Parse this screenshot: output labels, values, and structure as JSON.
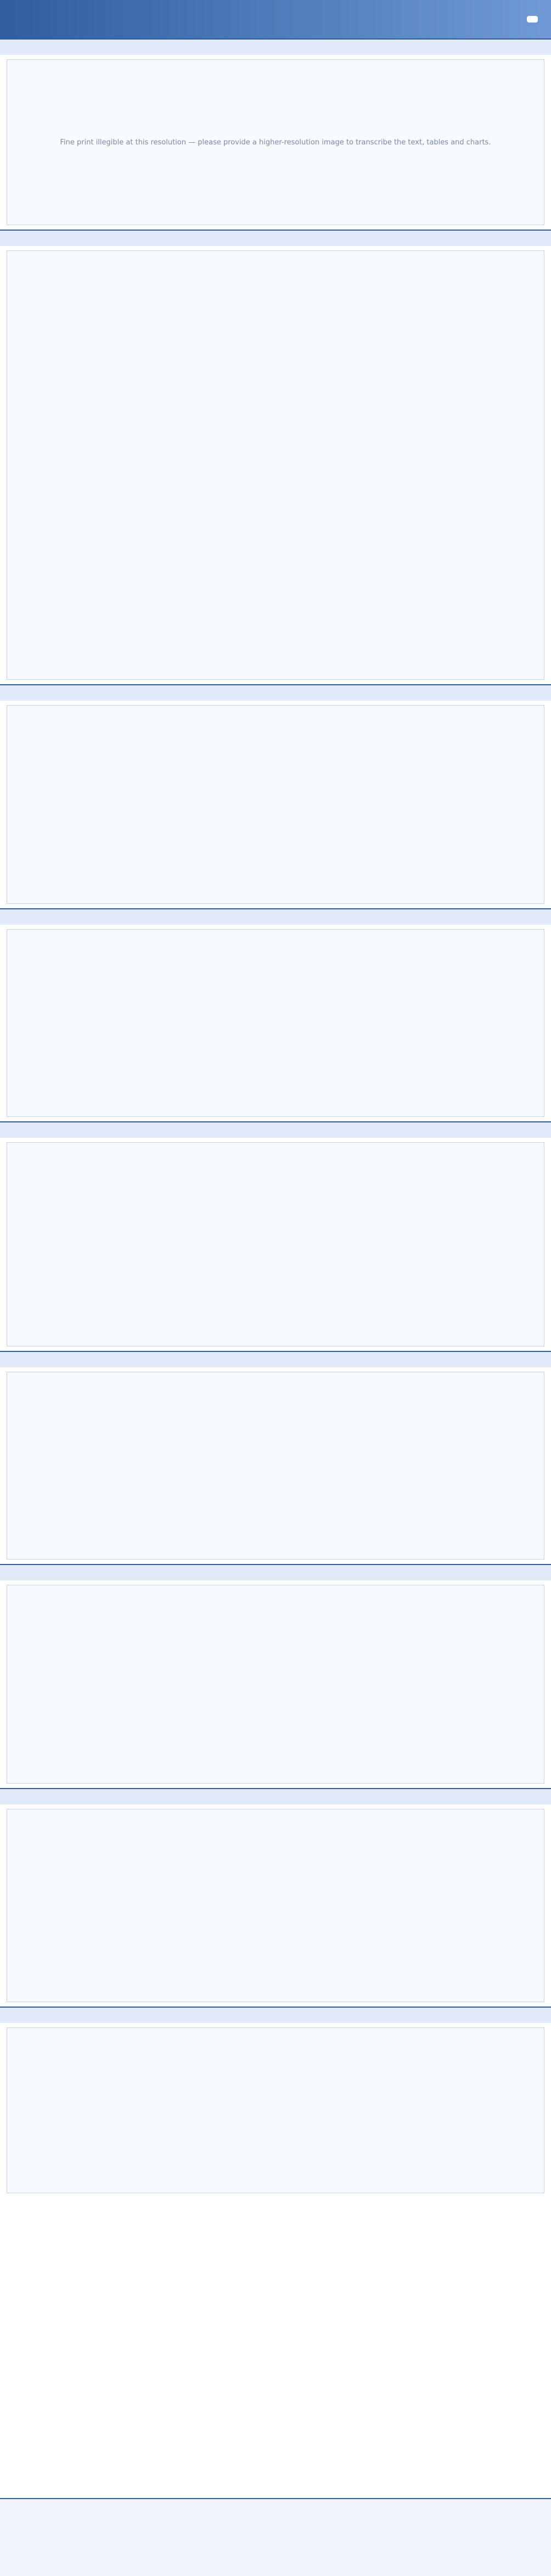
{
  "header": {
    "title": "",
    "logo_text": ""
  },
  "notice": "Fine print illegible at this resolution — please provide a higher-resolution image to transcribe the text, tables and charts.",
  "sections": [
    "",
    "",
    "",
    "",
    "",
    "",
    "",
    "",
    ""
  ]
}
